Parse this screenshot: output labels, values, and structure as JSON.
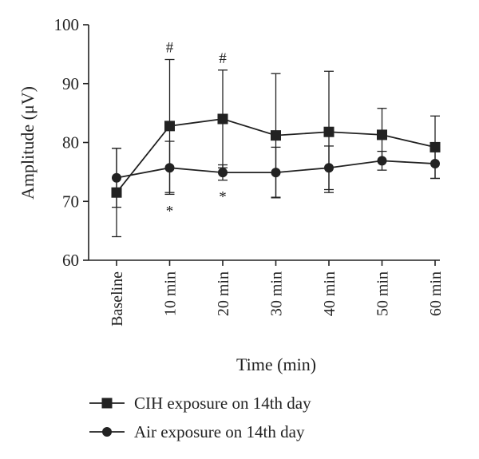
{
  "chart_data": {
    "type": "line",
    "xlabel": "Time (min)",
    "ylabel": "Amplitude (μV)",
    "ylim": [
      60,
      100
    ],
    "yticks": [
      60,
      70,
      80,
      90,
      100
    ],
    "categories": [
      "Baseline",
      "10 min",
      "20 min",
      "30 min",
      "40 min",
      "50 min",
      "60 min"
    ],
    "grid": false,
    "legend": "bottom",
    "series": [
      {
        "name": "CIH exposure on 14th day",
        "marker": "square",
        "color": "#222222",
        "values": [
          71.5,
          82.8,
          84.0,
          81.2,
          81.8,
          81.3,
          79.2
        ],
        "error": [
          7.5,
          11.3,
          8.3,
          10.5,
          10.3,
          4.5,
          5.3
        ]
      },
      {
        "name": "Air exposure on 14th day",
        "marker": "circle",
        "color": "#222222",
        "values": [
          74.0,
          75.7,
          74.9,
          74.9,
          75.7,
          76.9,
          76.4
        ],
        "error": [
          5.0,
          4.5,
          1.3,
          4.3,
          3.7,
          1.6,
          2.5
        ]
      }
    ],
    "annotations": [
      {
        "category": "10 min",
        "text": "#"
      },
      {
        "category": "20 min",
        "text": "#"
      },
      {
        "category": "10 min",
        "text": "*"
      },
      {
        "category": "20 min",
        "text": "*"
      }
    ]
  }
}
